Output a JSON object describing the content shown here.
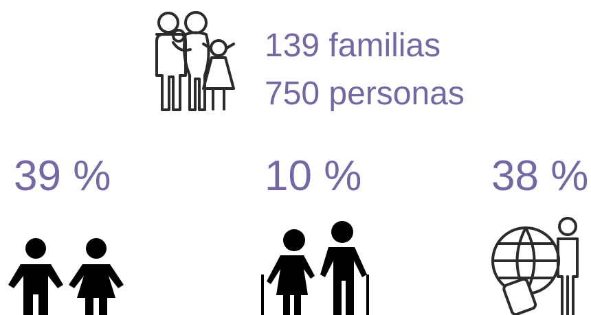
{
  "family": {
    "lines": [
      "139 familias",
      "750 personas"
    ]
  },
  "stats": [
    {
      "label": "39 %"
    },
    {
      "label": "10 %"
    },
    {
      "label": "38 %"
    }
  ]
}
